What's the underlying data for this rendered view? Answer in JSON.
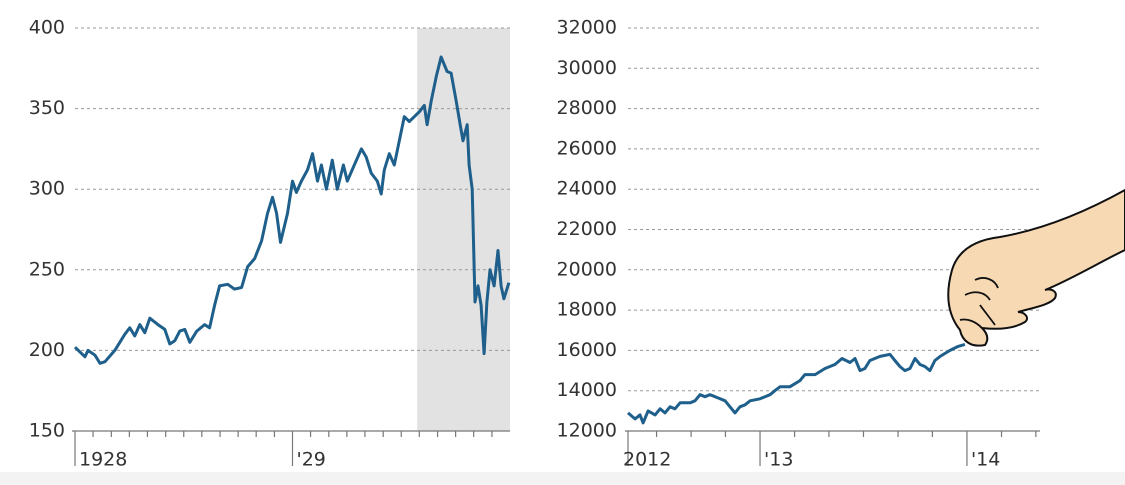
{
  "chart_data": [
    {
      "type": "line",
      "x": [
        1928.0,
        1928.046,
        1928.06,
        1928.092,
        1928.115,
        1928.138,
        1928.183,
        1928.229,
        1928.252,
        1928.275,
        1928.298,
        1928.321,
        1928.344,
        1928.381,
        1928.413,
        1928.436,
        1928.459,
        1928.482,
        1928.505,
        1928.528,
        1928.56,
        1928.596,
        1928.619,
        1928.642,
        1928.665,
        1928.702,
        1928.734,
        1928.766,
        1928.794,
        1928.826,
        1928.858,
        1928.885,
        1928.908,
        1928.927,
        1928.945,
        1928.977,
        1929.0,
        1929.018,
        1929.041,
        1929.069,
        1929.092,
        1929.115,
        1929.133,
        1929.156,
        1929.183,
        1929.206,
        1929.234,
        1929.252,
        1929.284,
        1929.317,
        1929.339,
        1929.362,
        1929.39,
        1929.408,
        1929.422,
        1929.445,
        1929.468,
        1929.491,
        1929.514,
        1929.537,
        1929.56,
        1929.583,
        1929.606,
        1929.619,
        1929.638,
        1929.661,
        1929.683,
        1929.711,
        1929.729,
        1929.752,
        1929.771,
        1929.784,
        1929.803,
        1929.812,
        1929.826,
        1929.839,
        1929.853,
        1929.867,
        1929.881,
        1929.894,
        1929.908,
        1929.927,
        1929.945,
        1929.959,
        1929.972,
        1929.995
      ],
      "values": [
        202,
        196,
        200,
        197,
        192,
        193,
        200,
        210,
        214,
        209,
        216,
        211,
        220,
        216,
        213,
        204,
        206,
        212,
        213,
        205,
        212,
        216,
        214,
        228,
        240,
        241,
        238,
        239,
        252,
        257,
        268,
        285,
        295,
        285,
        267,
        285,
        305,
        298,
        305,
        312,
        322,
        305,
        315,
        300,
        318,
        300,
        315,
        305,
        315,
        325,
        320,
        310,
        305,
        297,
        312,
        322,
        315,
        330,
        345,
        342,
        345,
        348,
        352,
        340,
        355,
        370,
        382,
        373,
        372,
        355,
        340,
        330,
        340,
        315,
        300,
        230,
        240,
        228,
        198,
        230,
        250,
        240,
        262,
        240,
        232,
        242
      ],
      "color": "#1f5f8b",
      "xlim": [
        1928,
        1930
      ],
      "xticks": [
        1928,
        {
          "value": 1929,
          "label": "'29"
        }
      ],
      "minor_xticks": [
        1928.083,
        1928.167,
        1928.25,
        1928.333,
        1928.417,
        1928.5,
        1928.583,
        1928.667,
        1928.75,
        1928.833,
        1928.917,
        1929.083,
        1929.167,
        1929.25,
        1929.333,
        1929.417,
        1929.5,
        1929.583,
        1929.667,
        1929.75,
        1929.833,
        1929.917
      ],
      "shaded_range": [
        1929.573,
        1930
      ],
      "ylim": [
        150,
        400
      ],
      "yticks": [
        150,
        200,
        250,
        300,
        350,
        400
      ],
      "grid": true
    },
    {
      "type": "line",
      "x": [
        2012.362,
        2012.396,
        2012.42,
        2012.435,
        2012.459,
        2012.493,
        2012.517,
        2012.541,
        2012.565,
        2012.589,
        2012.614,
        2012.662,
        2012.686,
        2012.71,
        2012.734,
        2012.758,
        2012.783,
        2012.807,
        2012.831,
        2012.855,
        2012.879,
        2012.903,
        2012.928,
        2012.952,
        2013.0,
        2013.024,
        2013.048,
        2013.072,
        2013.097,
        2013.145,
        2013.193,
        2013.217,
        2013.266,
        2013.314,
        2013.362,
        2013.396,
        2013.435,
        2013.459,
        2013.483,
        2013.507,
        2013.531,
        2013.58,
        2013.628,
        2013.652,
        2013.676,
        2013.7,
        2013.725,
        2013.749,
        2013.773,
        2013.797,
        2013.821,
        2013.845,
        2013.87,
        2013.918,
        2013.957,
        2013.99
      ],
      "values": [
        12900,
        12600,
        12800,
        12400,
        13000,
        12800,
        13100,
        12900,
        13200,
        13100,
        13400,
        13400,
        13500,
        13800,
        13700,
        13800,
        13700,
        13600,
        13500,
        13200,
        12900,
        13200,
        13300,
        13500,
        13600,
        13700,
        13800,
        14000,
        14200,
        14200,
        14500,
        14800,
        14800,
        15100,
        15300,
        15600,
        15400,
        15600,
        15000,
        15100,
        15500,
        15700,
        15800,
        15500,
        15200,
        15000,
        15100,
        15600,
        15300,
        15200,
        15000,
        15500,
        15700,
        16000,
        16200,
        16300
      ],
      "color": "#1f5f8b",
      "xlim": [
        2012.362,
        2014.353
      ],
      "xticks": [
        {
          "value": 2012.362,
          "label": "2012"
        },
        {
          "value": 2013,
          "label": "'13"
        },
        {
          "value": 2014,
          "label": "'14"
        }
      ],
      "minor_xticks": [
        2012.5,
        2012.667,
        2012.833,
        2013.167,
        2013.333,
        2013.5,
        2013.667,
        2013.833,
        2014.167,
        2014.333
      ],
      "ylim": [
        12000,
        32000
      ],
      "yticks": [
        12000,
        14000,
        16000,
        18000,
        20000,
        22000,
        24000,
        26000,
        28000,
        30000,
        32000
      ],
      "grid": true
    }
  ]
}
